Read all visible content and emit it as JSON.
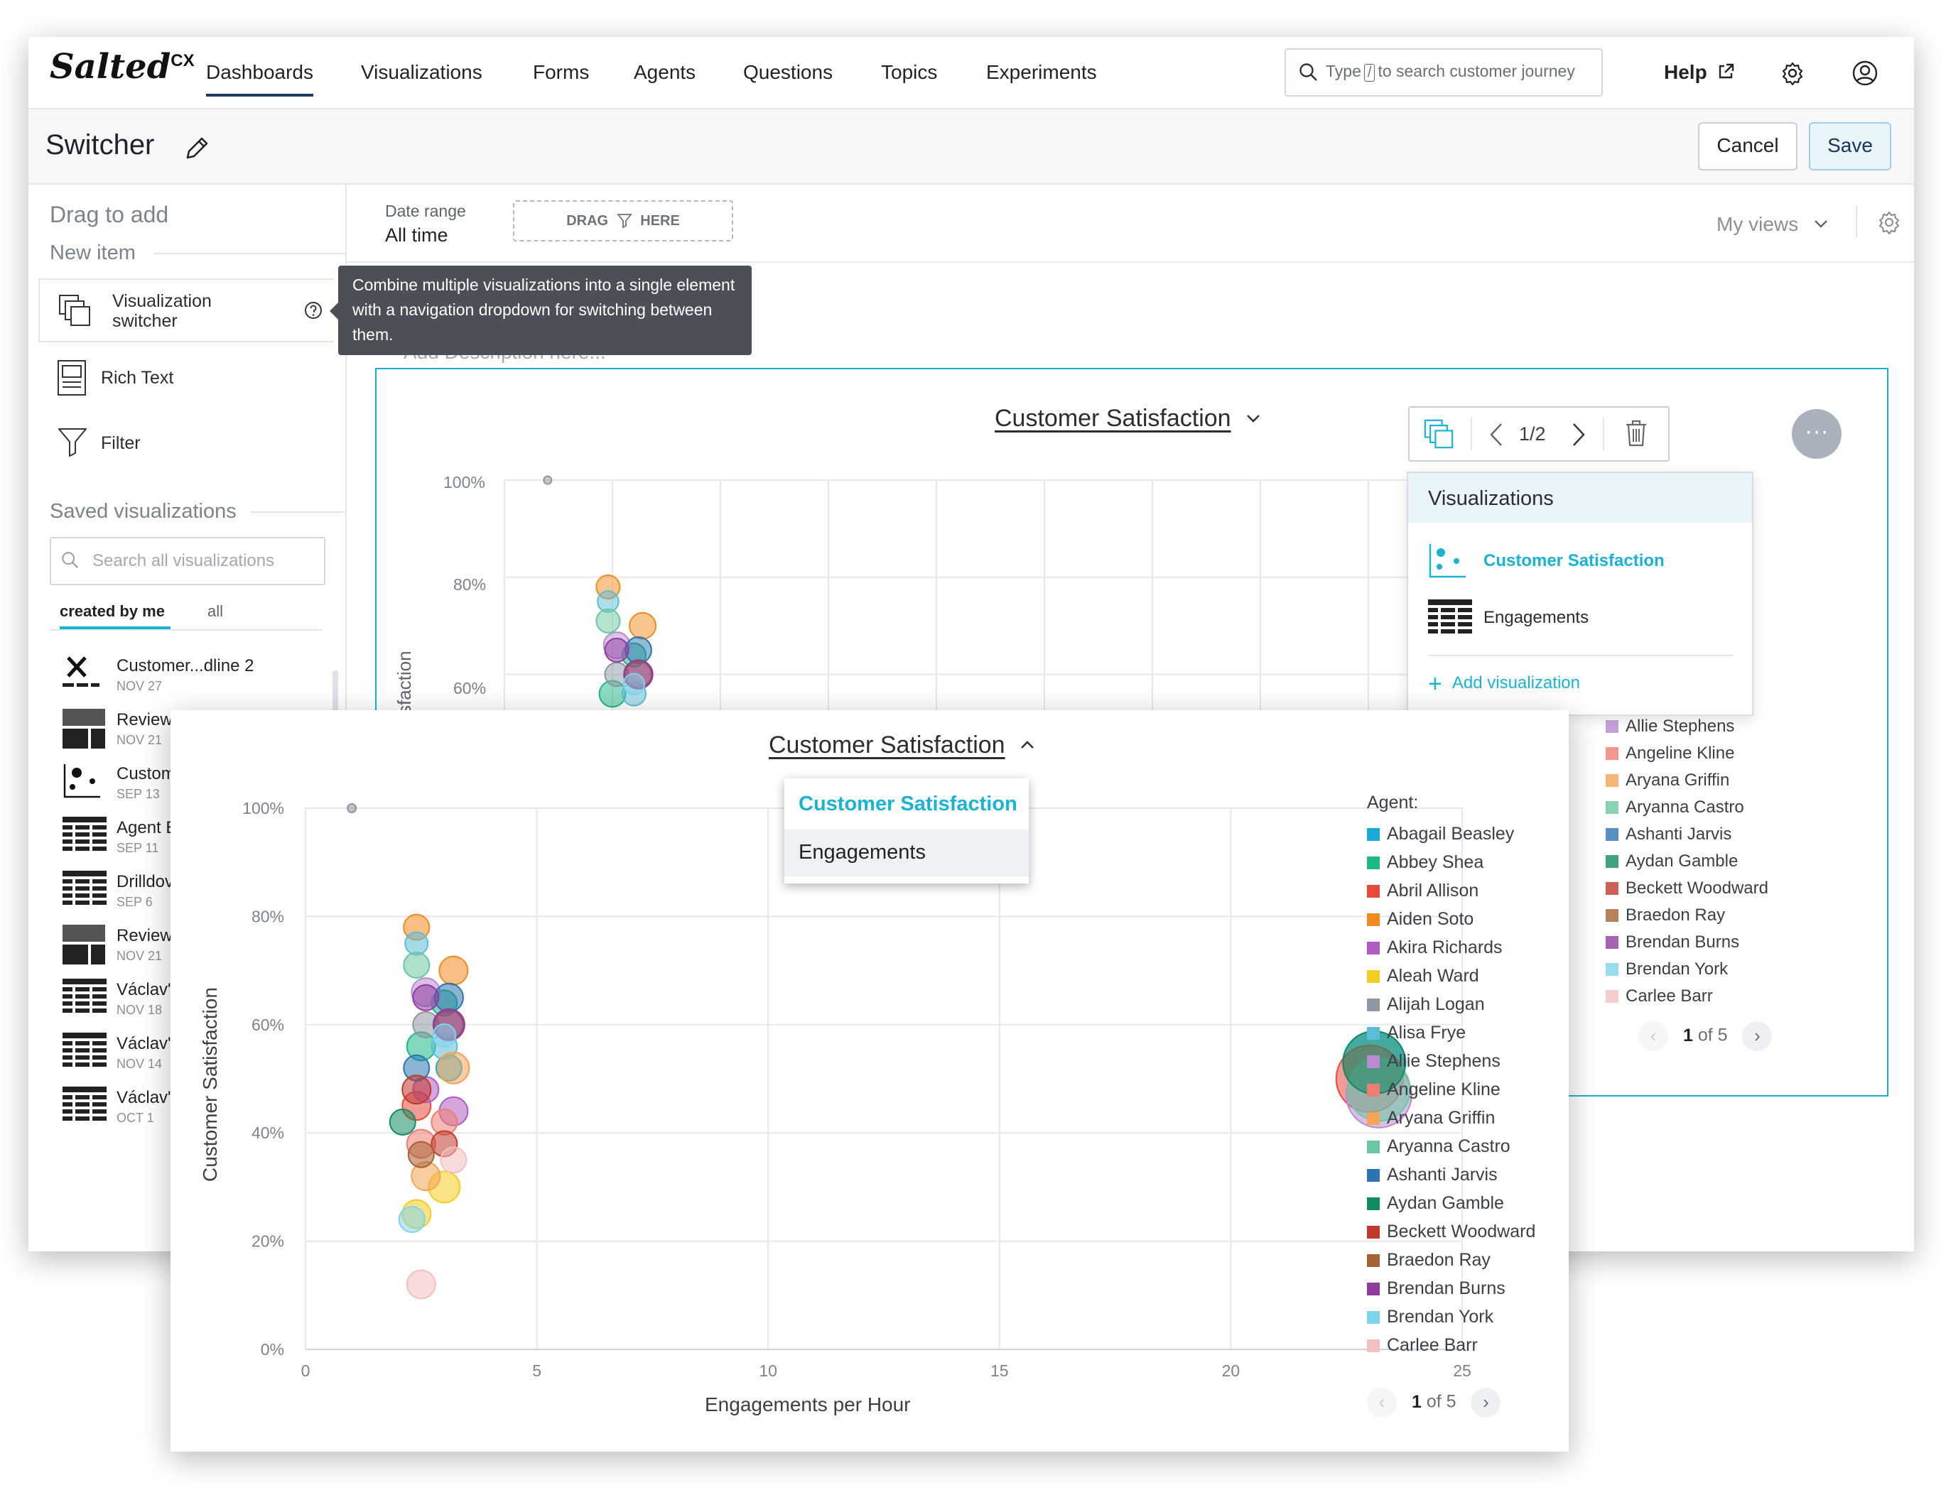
{
  "app": {
    "logo": "Salted",
    "logo_sup": "CX",
    "nav": [
      "Dashboards",
      "Visualizations",
      "Forms",
      "Agents",
      "Questions",
      "Topics",
      "Experiments"
    ],
    "search_pre": "Type",
    "search_key": "/",
    "search_post": "to search customer journey",
    "help": "Help"
  },
  "toolbar": {
    "title": "Switcher",
    "cancel": "Cancel",
    "save": "Save"
  },
  "sidebar": {
    "drag_to_add": "Drag to add",
    "new_item": "New item",
    "new_items": [
      {
        "label1": "Visualization",
        "label2": "switcher"
      },
      {
        "label1": "Rich Text",
        "label2": ""
      },
      {
        "label1": "Filter",
        "label2": ""
      }
    ],
    "saved_heading": "Saved visualizations",
    "search_placeholder": "Search all visualizations",
    "tab_mine": "created by me",
    "tab_all": "all",
    "saved": [
      {
        "name": "Customer...dline 2",
        "date": "NOV 27",
        "icon": "x-chart-icon"
      },
      {
        "name": "Review",
        "date": "NOV 21",
        "icon": "block-icon"
      },
      {
        "name": "Custom",
        "date": "SEP 13",
        "icon": "scatter-icon"
      },
      {
        "name": "Agent E",
        "date": "SEP 11",
        "icon": "table-icon"
      },
      {
        "name": "Drilldov",
        "date": "SEP 6",
        "icon": "table-icon"
      },
      {
        "name": "Review",
        "date": "NOV 21",
        "icon": "block-icon"
      },
      {
        "name": "Václav'",
        "date": "NOV 18",
        "icon": "table-icon"
      },
      {
        "name": "Václav'",
        "date": "NOV 14",
        "icon": "table-icon"
      },
      {
        "name": "Václav'",
        "date": "OCT 1",
        "icon": "table-icon"
      }
    ]
  },
  "filters": {
    "date_label": "Date range",
    "date_value": "All time",
    "drag1": "DRAG",
    "drag2": "HERE",
    "my_views": "My views"
  },
  "tooltip": "Combine multiple visualizations into a single element with a navigation dropdown for switching between them.",
  "canvas": {
    "description_placeholder": "Add Description here...",
    "chart_title": "Customer Satisfaction",
    "switcher_count": "1/2",
    "viz_panel_title": "Visualizations",
    "viz_items": [
      "Customer Satisfaction",
      "Engagements"
    ],
    "add_viz": "Add visualization",
    "y_ticks": [
      "100%",
      "80%",
      "60%"
    ],
    "y_label_partial": "sfaction",
    "legend_partial": [
      "Allie Stephens",
      "Angeline Kline",
      "Aryana Griffin",
      "Aryanna Castro",
      "Ashanti Jarvis",
      "Aydan Gamble",
      "Beckett Woodward",
      "Braedon Ray",
      "Brendan Burns",
      "Brendan York",
      "Carlee Barr"
    ],
    "pager_current": "1",
    "pager_rest": "of 5"
  },
  "overlay": {
    "chart_title": "Customer Satisfaction",
    "menu": [
      "Customer Satisfaction",
      "Engagements"
    ],
    "legend_title": "Agent:",
    "pager_current": "1",
    "pager_rest": "of 5"
  },
  "colors": {
    "accent": "#1ab3d4",
    "nav_active": "#1e3a5f",
    "save_bg": "#eaf4fb"
  },
  "chart_data": {
    "type": "scatter",
    "title": "Customer Satisfaction",
    "xlabel": "Engagements per Hour",
    "ylabel": "Customer Satisfaction",
    "xlim": [
      0,
      25
    ],
    "ylim": [
      0,
      100
    ],
    "x_ticks": [
      "0",
      "5",
      "10",
      "15",
      "20",
      "25"
    ],
    "y_ticks": [
      "0%",
      "20%",
      "40%",
      "60%",
      "80%",
      "100%"
    ],
    "legend_title": "Agent:",
    "series": [
      {
        "name": "Abagail Beasley",
        "color": "#1aa9d9",
        "points": [
          [
            3.1,
            52,
            18
          ],
          [
            23.1,
            53,
            44
          ]
        ]
      },
      {
        "name": "Abbey Shea",
        "color": "#1cb886",
        "points": [
          [
            2.5,
            56,
            20
          ],
          [
            3.0,
            64,
            18
          ]
        ]
      },
      {
        "name": "Abril Allison",
        "color": "#e84b3c",
        "points": [
          [
            2.4,
            45,
            20
          ],
          [
            23.0,
            50,
            47
          ]
        ]
      },
      {
        "name": "Aiden Soto",
        "color": "#f28b1f",
        "points": [
          [
            2.4,
            78,
            18
          ],
          [
            3.2,
            70,
            20
          ]
        ]
      },
      {
        "name": "Akira Richards",
        "color": "#b05cc3",
        "points": [
          [
            3.2,
            44,
            20
          ],
          [
            2.6,
            48,
            18
          ]
        ]
      },
      {
        "name": "Aleah Ward",
        "color": "#f3cd1f",
        "points": [
          [
            3.0,
            30,
            22
          ],
          [
            2.4,
            25,
            20
          ]
        ]
      },
      {
        "name": "Alijah Logan",
        "color": "#8e96a3",
        "points": [
          [
            1.0,
            100,
            6
          ],
          [
            2.6,
            60,
            18
          ]
        ]
      },
      {
        "name": "Alisa Frye",
        "color": "#5bbdd6",
        "points": [
          [
            2.4,
            75,
            16
          ],
          [
            3.0,
            56,
            18
          ]
        ]
      },
      {
        "name": "Allie Stephens",
        "color": "#b98bd0",
        "points": [
          [
            2.6,
            66,
            20
          ],
          [
            23.2,
            47,
            46
          ]
        ]
      },
      {
        "name": "Angeline Kline",
        "color": "#ee7d72",
        "points": [
          [
            2.5,
            38,
            20
          ],
          [
            3.0,
            42,
            18
          ]
        ]
      },
      {
        "name": "Aryana Griffin",
        "color": "#f4a455",
        "points": [
          [
            3.2,
            52,
            22
          ],
          [
            2.6,
            32,
            20
          ]
        ]
      },
      {
        "name": "Aryanna Castro",
        "color": "#6bc7a1",
        "points": [
          [
            2.4,
            71,
            18
          ],
          [
            23.2,
            48,
            44
          ]
        ]
      },
      {
        "name": "Ashanti Jarvis",
        "color": "#2b74b0",
        "points": [
          [
            3.1,
            65,
            20
          ],
          [
            2.4,
            52,
            18
          ]
        ]
      },
      {
        "name": "Aydan Gamble",
        "color": "#138b61",
        "points": [
          [
            2.1,
            42,
            18
          ],
          [
            23.1,
            53,
            44
          ]
        ]
      },
      {
        "name": "Beckett Woodward",
        "color": "#c0392b",
        "points": [
          [
            2.4,
            48,
            20
          ],
          [
            3.0,
            38,
            18
          ]
        ]
      },
      {
        "name": "Braedon Ray",
        "color": "#a86132",
        "points": [
          [
            3.1,
            60,
            20
          ],
          [
            2.5,
            36,
            18
          ]
        ]
      },
      {
        "name": "Brendan Burns",
        "color": "#8e3d9f",
        "points": [
          [
            3.1,
            60,
            22
          ],
          [
            2.6,
            65,
            18
          ]
        ]
      },
      {
        "name": "Brendan York",
        "color": "#7fd3ec",
        "points": [
          [
            2.3,
            24,
            18
          ],
          [
            3.0,
            58,
            16
          ]
        ]
      },
      {
        "name": "Carlee Barr",
        "color": "#f2c0bd",
        "points": [
          [
            2.5,
            12,
            20
          ],
          [
            3.2,
            35,
            18
          ]
        ]
      }
    ]
  }
}
